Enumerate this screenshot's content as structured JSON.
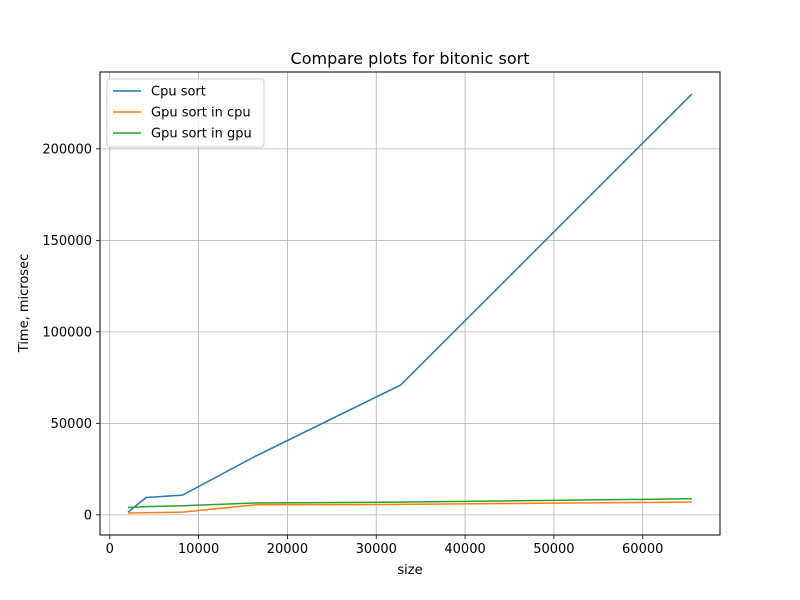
{
  "chart_data": {
    "type": "line",
    "title": "Compare plots for bitonic sort",
    "xlabel": "size",
    "ylabel": "Time, microsec",
    "xlim": [
      -1100,
      68700
    ],
    "ylim": [
      -11000,
      242000
    ],
    "xticks": [
      0,
      10000,
      20000,
      30000,
      40000,
      50000,
      60000
    ],
    "yticks": [
      0,
      50000,
      100000,
      150000,
      200000
    ],
    "grid": true,
    "legend_position": "top-left",
    "x": [
      2048,
      4096,
      8192,
      16384,
      32768,
      65536
    ],
    "series": [
      {
        "name": "Cpu sort",
        "color": "#1f77b4",
        "values": [
          1500,
          9500,
          10800,
          32000,
          71000,
          230000
        ]
      },
      {
        "name": "Gpu sort in cpu",
        "color": "#ff7f0e",
        "values": [
          1000,
          1200,
          1500,
          5500,
          5700,
          7000
        ]
      },
      {
        "name": "Gpu sort in gpu",
        "color": "#2ca02c",
        "values": [
          4000,
          4500,
          5000,
          6500,
          7000,
          8800
        ]
      }
    ]
  }
}
